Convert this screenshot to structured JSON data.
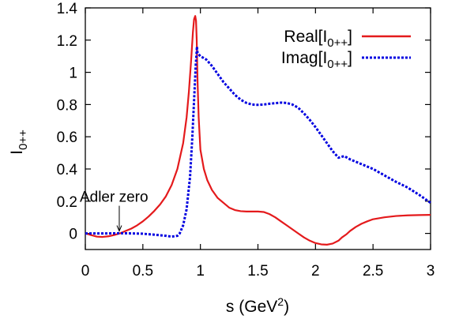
{
  "chart_data": {
    "type": "line",
    "title": "",
    "xlabel": {
      "main": "s (GeV",
      "sup": "2",
      "tail": ")"
    },
    "ylabel": {
      "main": "I",
      "sub": "0++"
    },
    "xlim": [
      0,
      3
    ],
    "ylim": [
      -0.1,
      1.4
    ],
    "xticks": [
      0,
      0.5,
      1,
      1.5,
      2,
      2.5,
      3
    ],
    "xtick_labels": [
      "0",
      "0.5",
      "1",
      "1.5",
      "2",
      "2.5",
      "3"
    ],
    "yticks": [
      0,
      0.2,
      0.4,
      0.6,
      0.8,
      1.0,
      1.2,
      1.4
    ],
    "ytick_labels": [
      "0",
      "0.2",
      "0.4",
      "0.6",
      "0.8",
      "1",
      "1.2",
      "1.4"
    ],
    "grid": false,
    "legend_position": "top-right",
    "series": [
      {
        "name": {
          "main": "Real[I",
          "sub": "0++",
          "tail": "]"
        },
        "color": "#e41a1c",
        "style": "solid",
        "points": [
          [
            0.0,
            0.0
          ],
          [
            0.05,
            -0.01
          ],
          [
            0.1,
            -0.02
          ],
          [
            0.15,
            -0.022
          ],
          [
            0.2,
            -0.018
          ],
          [
            0.25,
            -0.01
          ],
          [
            0.3,
            0.0
          ],
          [
            0.35,
            0.015
          ],
          [
            0.4,
            0.03
          ],
          [
            0.45,
            0.05
          ],
          [
            0.5,
            0.075
          ],
          [
            0.55,
            0.105
          ],
          [
            0.6,
            0.14
          ],
          [
            0.65,
            0.18
          ],
          [
            0.7,
            0.23
          ],
          [
            0.75,
            0.3
          ],
          [
            0.8,
            0.4
          ],
          [
            0.85,
            0.56
          ],
          [
            0.88,
            0.72
          ],
          [
            0.9,
            0.88
          ],
          [
            0.92,
            1.08
          ],
          [
            0.935,
            1.25
          ],
          [
            0.945,
            1.33
          ],
          [
            0.955,
            1.35
          ],
          [
            0.962,
            1.32
          ],
          [
            0.968,
            1.2
          ],
          [
            0.975,
            0.95
          ],
          [
            0.985,
            0.72
          ],
          [
            1.0,
            0.52
          ],
          [
            1.03,
            0.4
          ],
          [
            1.06,
            0.33
          ],
          [
            1.1,
            0.27
          ],
          [
            1.15,
            0.22
          ],
          [
            1.2,
            0.19
          ],
          [
            1.25,
            0.16
          ],
          [
            1.3,
            0.145
          ],
          [
            1.35,
            0.138
          ],
          [
            1.4,
            0.136
          ],
          [
            1.5,
            0.136
          ],
          [
            1.55,
            0.133
          ],
          [
            1.6,
            0.12
          ],
          [
            1.65,
            0.1
          ],
          [
            1.7,
            0.075
          ],
          [
            1.75,
            0.05
          ],
          [
            1.8,
            0.025
          ],
          [
            1.85,
            0.0
          ],
          [
            1.9,
            -0.025
          ],
          [
            1.95,
            -0.045
          ],
          [
            2.0,
            -0.06
          ],
          [
            2.05,
            -0.068
          ],
          [
            2.1,
            -0.07
          ],
          [
            2.15,
            -0.063
          ],
          [
            2.2,
            -0.045
          ],
          [
            2.23,
            -0.025
          ],
          [
            2.27,
            -0.005
          ],
          [
            2.3,
            0.015
          ],
          [
            2.35,
            0.04
          ],
          [
            2.4,
            0.06
          ],
          [
            2.45,
            0.075
          ],
          [
            2.5,
            0.088
          ],
          [
            2.6,
            0.1
          ],
          [
            2.7,
            0.108
          ],
          [
            2.8,
            0.112
          ],
          [
            2.9,
            0.114
          ],
          [
            3.0,
            0.115
          ]
        ]
      },
      {
        "name": {
          "main": "Imag[I",
          "sub": "0++",
          "tail": "]"
        },
        "color": "#0000e0",
        "style": "dotted",
        "points": [
          [
            0.0,
            0.0
          ],
          [
            0.1,
            0.0
          ],
          [
            0.2,
            0.0
          ],
          [
            0.3,
            0.001
          ],
          [
            0.4,
            0.0
          ],
          [
            0.5,
            -0.002
          ],
          [
            0.6,
            -0.008
          ],
          [
            0.7,
            -0.015
          ],
          [
            0.75,
            -0.02
          ],
          [
            0.8,
            -0.015
          ],
          [
            0.82,
            0.0
          ],
          [
            0.85,
            0.05
          ],
          [
            0.88,
            0.15
          ],
          [
            0.91,
            0.35
          ],
          [
            0.93,
            0.6
          ],
          [
            0.95,
            0.9
          ],
          [
            0.96,
            1.05
          ],
          [
            0.965,
            1.1
          ],
          [
            0.97,
            1.16
          ],
          [
            0.975,
            1.12
          ],
          [
            1.0,
            1.1
          ],
          [
            1.05,
            1.08
          ],
          [
            1.1,
            1.04
          ],
          [
            1.15,
            0.99
          ],
          [
            1.2,
            0.94
          ],
          [
            1.25,
            0.9
          ],
          [
            1.3,
            0.86
          ],
          [
            1.35,
            0.83
          ],
          [
            1.4,
            0.81
          ],
          [
            1.45,
            0.8
          ],
          [
            1.5,
            0.798
          ],
          [
            1.55,
            0.8
          ],
          [
            1.6,
            0.805
          ],
          [
            1.7,
            0.812
          ],
          [
            1.75,
            0.81
          ],
          [
            1.8,
            0.8
          ],
          [
            1.85,
            0.78
          ],
          [
            1.9,
            0.745
          ],
          [
            1.95,
            0.705
          ],
          [
            2.0,
            0.66
          ],
          [
            2.05,
            0.61
          ],
          [
            2.1,
            0.56
          ],
          [
            2.15,
            0.51
          ],
          [
            2.2,
            0.47
          ],
          [
            2.25,
            0.48
          ],
          [
            2.3,
            0.46
          ],
          [
            2.4,
            0.43
          ],
          [
            2.5,
            0.4
          ],
          [
            2.6,
            0.36
          ],
          [
            2.7,
            0.32
          ],
          [
            2.8,
            0.285
          ],
          [
            2.9,
            0.24
          ],
          [
            3.0,
            0.19
          ]
        ]
      }
    ],
    "annotations": [
      {
        "text": "Adler zero",
        "x": 0.295,
        "y": 0.0
      }
    ]
  }
}
